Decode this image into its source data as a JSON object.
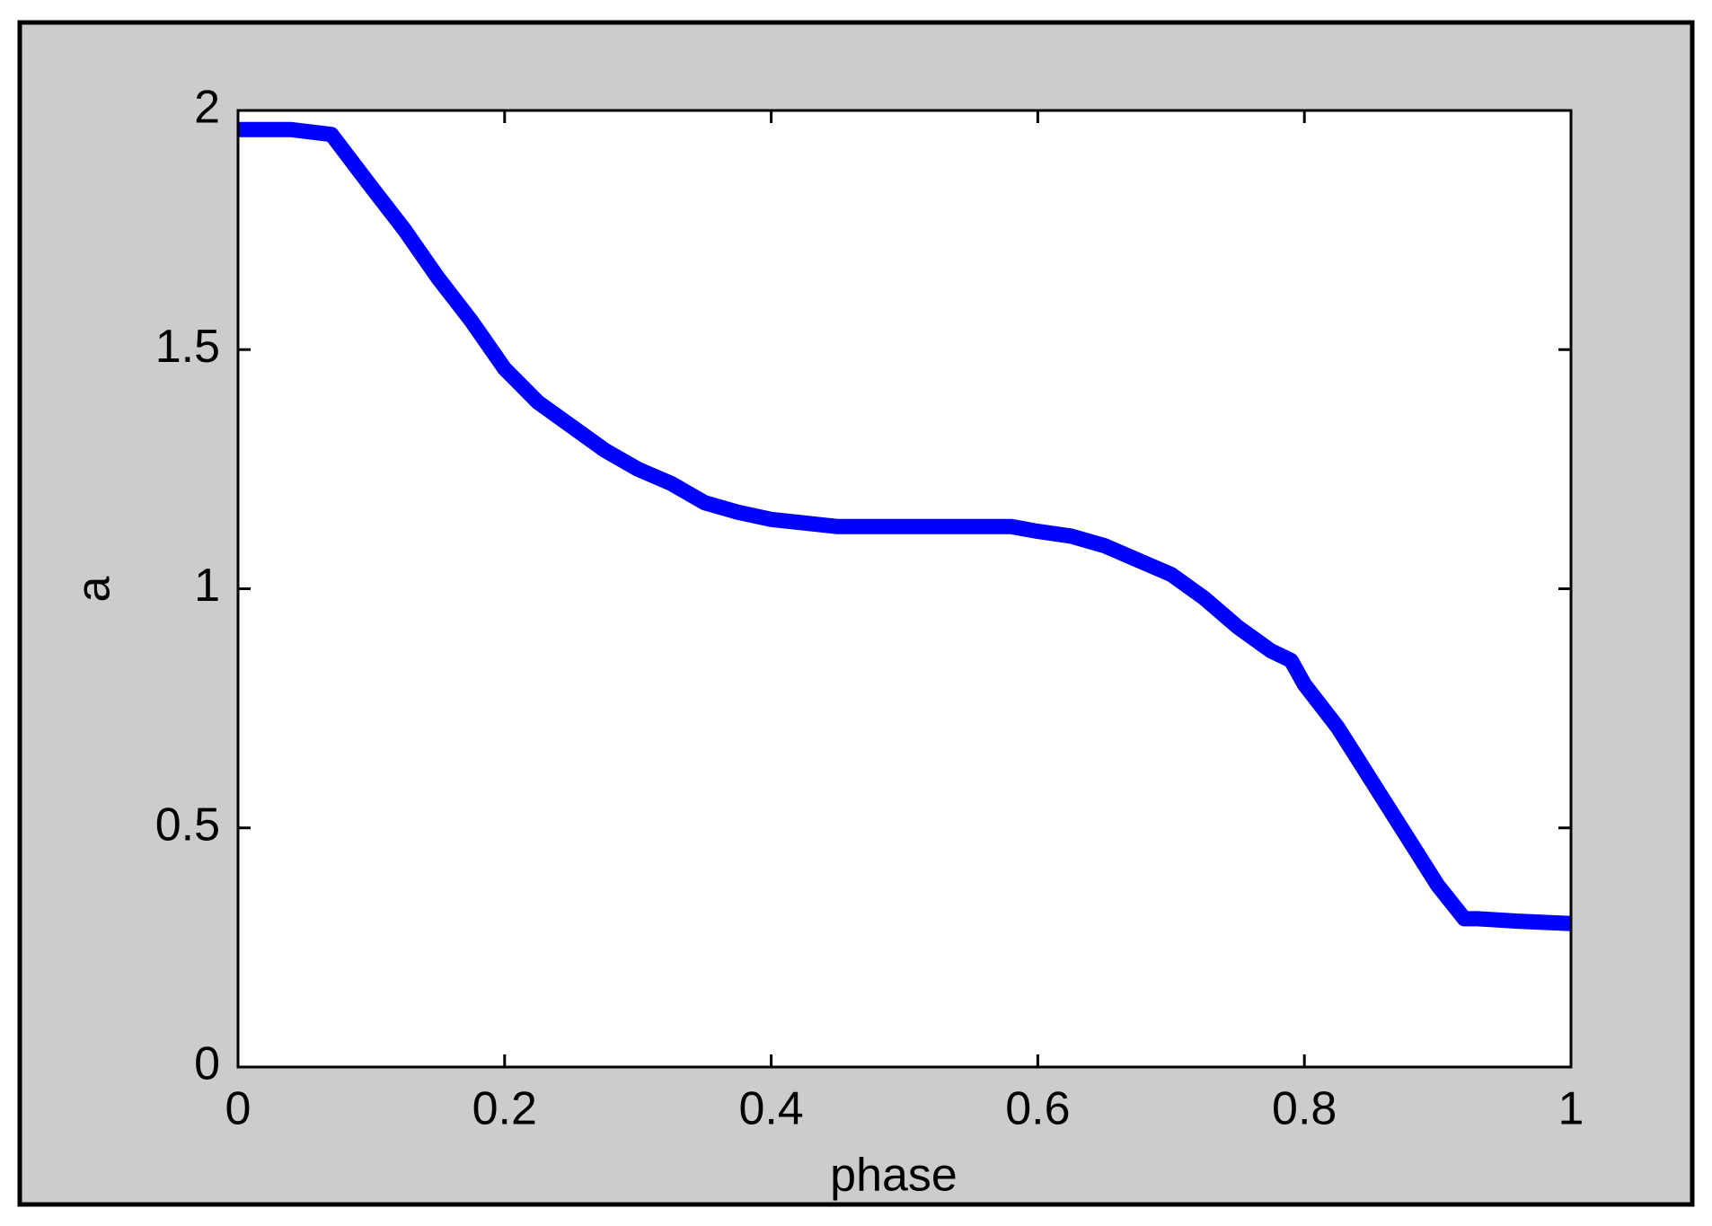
{
  "chart_data": {
    "type": "line",
    "x_label": "phase",
    "y_label": "a",
    "x": [
      0,
      0.04,
      0.07,
      0.1,
      0.125,
      0.15,
      0.175,
      0.2,
      0.225,
      0.25,
      0.275,
      0.3,
      0.325,
      0.35,
      0.375,
      0.4,
      0.45,
      0.5,
      0.55,
      0.58,
      0.6,
      0.625,
      0.65,
      0.675,
      0.7,
      0.725,
      0.75,
      0.775,
      0.79,
      0.8,
      0.825,
      0.85,
      0.875,
      0.9,
      0.92,
      0.93,
      0.96,
      1.0
    ],
    "series": [
      {
        "color": "#0000ff",
        "values": [
          1.96,
          1.96,
          1.95,
          1.84,
          1.75,
          1.65,
          1.56,
          1.46,
          1.39,
          1.34,
          1.29,
          1.25,
          1.22,
          1.18,
          1.16,
          1.145,
          1.13,
          1.13,
          1.13,
          1.13,
          1.12,
          1.11,
          1.09,
          1.06,
          1.03,
          0.98,
          0.92,
          0.87,
          0.85,
          0.8,
          0.71,
          0.6,
          0.49,
          0.38,
          0.31,
          0.31,
          0.305,
          0.3
        ]
      }
    ],
    "xlim": [
      0,
      1
    ],
    "ylim": [
      0,
      2
    ],
    "xticks": [
      0,
      0.2,
      0.4,
      0.6,
      0.8,
      1
    ],
    "yticks": [
      0,
      0.5,
      1,
      1.5,
      2
    ],
    "grid": false
  }
}
